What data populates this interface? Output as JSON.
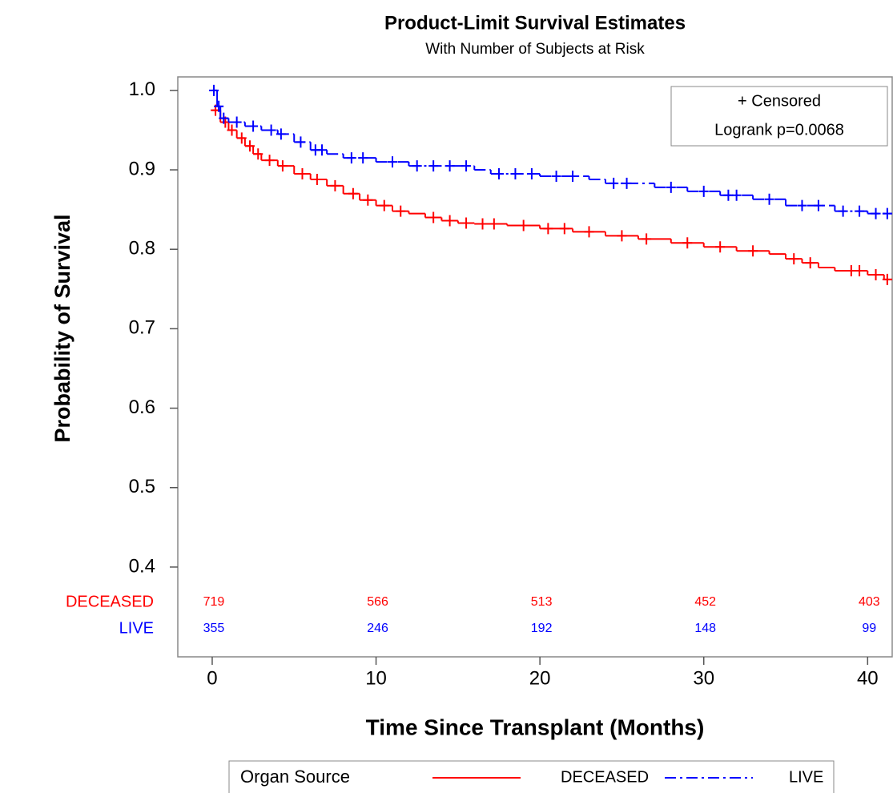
{
  "chart_data": {
    "type": "step",
    "title": "Product-Limit Survival Estimates",
    "subtitle": "With Number of Subjects at Risk",
    "x_label": "Time Since Transplant (Months)",
    "y_label": "Probability of Survival",
    "xlim": [
      -2.1,
      41.5
    ],
    "ylim": [
      0.287,
      1.017
    ],
    "xticks": [
      0,
      10,
      20,
      30,
      40
    ],
    "yticks": [
      {
        "value": 1.0,
        "label": "1.0"
      },
      0.9,
      0.8,
      0.7,
      0.6,
      0.5,
      0.4
    ],
    "inset": [
      "+ Censored",
      "Logrank p=0.0068"
    ],
    "legend_title": "Organ Source",
    "series": [
      {
        "name": "DECEASED",
        "color": "#ff0000",
        "dash": "none",
        "x": [
          0,
          0.5,
          1,
          1.5,
          2,
          2.5,
          3,
          4,
          5,
          6,
          7,
          8,
          9,
          10,
          11,
          12,
          13,
          14,
          15,
          16,
          18,
          20,
          22,
          24,
          26,
          28,
          30,
          32,
          34,
          35,
          36,
          37,
          38,
          40,
          41
        ],
        "values": [
          0.975,
          0.96,
          0.95,
          0.94,
          0.93,
          0.92,
          0.912,
          0.905,
          0.895,
          0.888,
          0.88,
          0.87,
          0.862,
          0.855,
          0.848,
          0.845,
          0.84,
          0.836,
          0.833,
          0.832,
          0.83,
          0.826,
          0.822,
          0.817,
          0.813,
          0.808,
          0.803,
          0.798,
          0.794,
          0.788,
          0.783,
          0.777,
          0.773,
          0.768,
          0.762
        ],
        "censored": [
          0.2,
          0.8,
          1.2,
          1.8,
          2.3,
          2.8,
          3.5,
          4.3,
          5.5,
          6.4,
          7.5,
          8.6,
          9.5,
          10.5,
          11.5,
          13.5,
          14.5,
          15.5,
          16.5,
          17.2,
          19,
          20.5,
          21.5,
          23,
          25,
          26.5,
          29,
          31,
          33,
          35.5,
          36.5,
          39,
          39.5,
          40.5,
          41.2
        ]
      },
      {
        "name": "LIVE",
        "color": "#0000ff",
        "dash": "14 5 3 5",
        "x": [
          0,
          0.3,
          0.5,
          1,
          2,
          3,
          4,
          5,
          6,
          7,
          8,
          10,
          12,
          16,
          17,
          20,
          23,
          24,
          27,
          29,
          31,
          33,
          35,
          38,
          40
        ],
        "values": [
          1.0,
          0.98,
          0.965,
          0.96,
          0.955,
          0.95,
          0.945,
          0.935,
          0.925,
          0.92,
          0.915,
          0.91,
          0.905,
          0.9,
          0.895,
          0.892,
          0.888,
          0.883,
          0.878,
          0.873,
          0.868,
          0.863,
          0.855,
          0.848,
          0.845
        ],
        "censored": [
          0.1,
          0.4,
          0.7,
          1.5,
          2.5,
          3.6,
          4.2,
          5.4,
          6.3,
          6.7,
          8.5,
          9.2,
          11,
          12.5,
          13.5,
          14.5,
          15.5,
          17.5,
          18.5,
          19.5,
          21,
          22,
          24.5,
          25.3,
          28,
          30,
          31.5,
          32,
          34,
          36,
          37,
          38.5,
          39.5,
          40.5,
          41.2
        ]
      }
    ],
    "at_risk": {
      "times": [
        0,
        10,
        20,
        30,
        40
      ],
      "rows": [
        {
          "name": "DECEASED",
          "color": "#ff0000",
          "values": [
            719,
            566,
            513,
            452,
            403
          ]
        },
        {
          "name": "LIVE",
          "color": "#0000ff",
          "values": [
            355,
            246,
            192,
            148,
            99
          ]
        }
      ]
    }
  }
}
